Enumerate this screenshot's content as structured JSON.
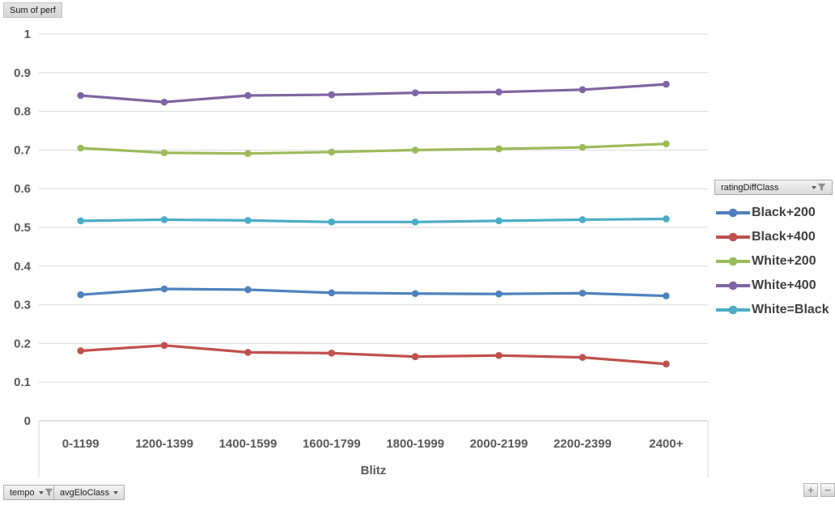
{
  "field_buttons": {
    "value_field": "Sum of perf",
    "legend_field": "ratingDiffClass",
    "axis_fields": [
      {
        "label": "tempo",
        "filtered": true,
        "has_dropdown": true
      },
      {
        "label": "avgEloClass",
        "filtered": false,
        "has_dropdown": true
      }
    ]
  },
  "zoom_controls": {
    "zoom_in": "+",
    "zoom_out": "−"
  },
  "chart_data": {
    "type": "line",
    "title": "Sum of perf",
    "xlabel": "Blitz",
    "ylabel": "",
    "ylim": [
      0,
      1
    ],
    "ytick_step": 0.1,
    "grid": true,
    "legend_position": "right",
    "legend_title": "ratingDiffClass",
    "categories": [
      "0-1199",
      "1200-1399",
      "1400-1599",
      "1600-1799",
      "1800-1999",
      "2000-2199",
      "2200-2399",
      "2400+"
    ],
    "series": [
      {
        "name": "Black+200",
        "color": "#4F81BD",
        "values": [
          0.326,
          0.341,
          0.339,
          0.331,
          0.329,
          0.328,
          0.33,
          0.323
        ]
      },
      {
        "name": "Black+400",
        "color": "#C0504D",
        "values": [
          0.181,
          0.195,
          0.177,
          0.175,
          0.166,
          0.169,
          0.164,
          0.147
        ]
      },
      {
        "name": "White+200",
        "color": "#9BBB59",
        "values": [
          0.705,
          0.693,
          0.691,
          0.695,
          0.7,
          0.703,
          0.707,
          0.716
        ]
      },
      {
        "name": "White+400",
        "color": "#8064A2",
        "values": [
          0.841,
          0.824,
          0.841,
          0.843,
          0.848,
          0.85,
          0.856,
          0.87
        ]
      },
      {
        "name": "White=Black",
        "color": "#4BACC6",
        "values": [
          0.517,
          0.52,
          0.518,
          0.514,
          0.514,
          0.517,
          0.52,
          0.522
        ]
      }
    ],
    "colors": {
      "gridline": "#d9d9d9",
      "axis_line": "#c0c0c0",
      "tick_text": "#595959"
    }
  }
}
